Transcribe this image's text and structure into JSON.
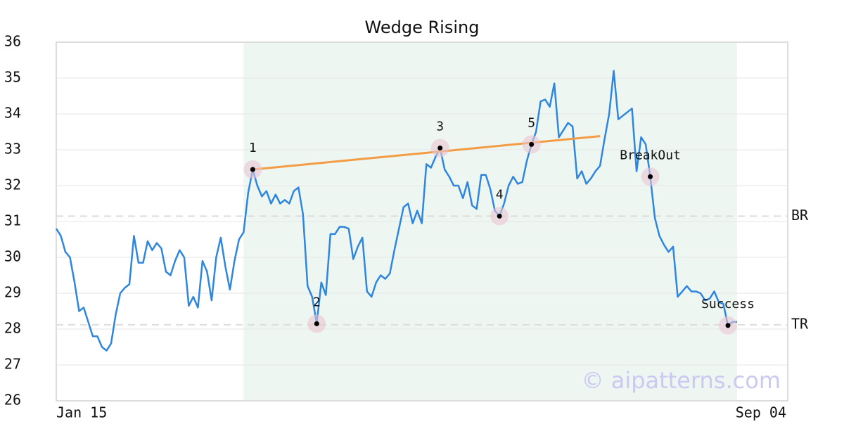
{
  "chart_data": {
    "type": "line",
    "title": "Wedge Rising",
    "categories": [
      "Jan 15",
      null,
      null,
      null,
      null,
      null,
      null,
      null,
      null,
      null,
      null,
      null,
      null,
      null,
      null,
      null,
      null,
      null,
      null,
      null,
      null,
      null,
      null,
      null,
      null,
      null,
      null,
      null,
      null,
      null,
      null,
      null,
      null,
      null,
      null,
      null,
      null,
      null,
      null,
      null,
      null,
      null,
      null,
      null,
      null,
      null,
      null,
      null,
      null,
      null,
      null,
      null,
      null,
      null,
      null,
      null,
      null,
      null,
      null,
      null,
      null,
      null,
      null,
      null,
      null,
      null,
      null,
      null,
      null,
      null,
      null,
      null,
      null,
      null,
      null,
      null,
      null,
      null,
      null,
      null,
      null,
      null,
      null,
      null,
      null,
      null,
      null,
      null,
      null,
      null,
      null,
      null,
      null,
      null,
      null,
      null,
      null,
      null,
      null,
      null,
      null,
      null,
      null,
      null,
      null,
      null,
      null,
      null,
      null,
      null,
      null,
      null,
      null,
      null,
      null,
      null,
      null,
      null,
      null,
      null,
      null,
      null,
      null,
      null,
      null,
      null,
      null,
      null,
      null,
      null,
      null,
      null,
      null,
      null,
      null,
      null,
      null,
      null,
      null,
      null,
      null,
      null,
      null,
      null,
      null,
      null,
      null,
      null,
      null,
      "Sep 04"
    ],
    "series": [
      {
        "color": "#2e86de",
        "values": [
          30.8,
          30.6,
          30.15,
          30.0,
          29.3,
          28.5,
          28.6,
          28.2,
          27.8,
          27.8,
          27.5,
          27.4,
          27.6,
          28.4,
          29.0,
          29.15,
          29.25,
          30.6,
          29.85,
          29.85,
          30.45,
          30.2,
          30.4,
          30.25,
          29.6,
          29.5,
          29.9,
          30.2,
          30.0,
          28.65,
          28.9,
          28.6,
          29.9,
          29.6,
          28.8,
          30.0,
          30.55,
          29.75,
          29.1,
          29.9,
          30.5,
          30.7,
          31.8,
          32.45,
          32.0,
          31.7,
          31.85,
          31.5,
          31.75,
          31.5,
          31.6,
          31.5,
          31.85,
          31.95,
          31.2,
          29.2,
          28.9,
          28.15,
          29.3,
          28.95,
          30.65,
          30.65,
          30.85,
          30.85,
          30.8,
          29.95,
          30.3,
          30.55,
          29.05,
          28.9,
          29.3,
          29.5,
          29.4,
          29.55,
          30.2,
          30.8,
          31.4,
          31.5,
          30.95,
          31.3,
          30.95,
          32.6,
          32.5,
          32.8,
          33.05,
          32.45,
          32.25,
          32.0,
          32.0,
          31.65,
          32.1,
          31.45,
          31.35,
          32.3,
          32.3,
          31.9,
          31.3,
          31.15,
          31.5,
          32.0,
          32.25,
          32.05,
          32.1,
          32.7,
          33.15,
          33.5,
          34.35,
          34.4,
          34.2,
          34.85,
          33.35,
          33.55,
          33.75,
          33.65,
          32.2,
          32.4,
          32.05,
          32.2,
          32.4,
          32.55,
          33.3,
          34.0,
          35.2,
          33.85,
          33.95,
          34.05,
          34.15,
          32.4,
          33.35,
          33.15,
          32.25,
          31.1,
          30.6,
          30.35,
          30.15,
          30.3,
          28.9,
          29.05,
          29.2,
          29.05,
          29.05,
          29.0,
          28.8,
          28.85,
          29.05,
          28.75,
          28.7,
          28.1,
          28.2,
          28.2
        ]
      }
    ],
    "ylim": [
      26,
      36
    ],
    "yticks": [
      26,
      27,
      28,
      29,
      30,
      31,
      32,
      33,
      34,
      35,
      36
    ],
    "grid": true,
    "highlight": {
      "x": [
        41,
        149
      ],
      "color": "#eef6f1"
    },
    "trendline": {
      "x": [
        43,
        119
      ],
      "y": [
        32.45,
        33.38
      ],
      "color": "#f39c45"
    },
    "levels": [
      {
        "label": "BR",
        "value": 31.15
      },
      {
        "label": "TR",
        "value": 28.12
      }
    ],
    "markers": [
      {
        "label": "1",
        "x": 43,
        "y": 32.45
      },
      {
        "label": "2",
        "x": 57,
        "y": 28.15
      },
      {
        "label": "3",
        "x": 84,
        "y": 33.05
      },
      {
        "label": "4",
        "x": 97,
        "y": 31.15
      },
      {
        "label": "5",
        "x": 104,
        "y": 33.15
      },
      {
        "label": "BreakOut",
        "x": 130,
        "y": 32.25
      },
      {
        "label": "Success",
        "x": 147,
        "y": 28.1
      }
    ],
    "watermark": "© aipatterns.com"
  }
}
